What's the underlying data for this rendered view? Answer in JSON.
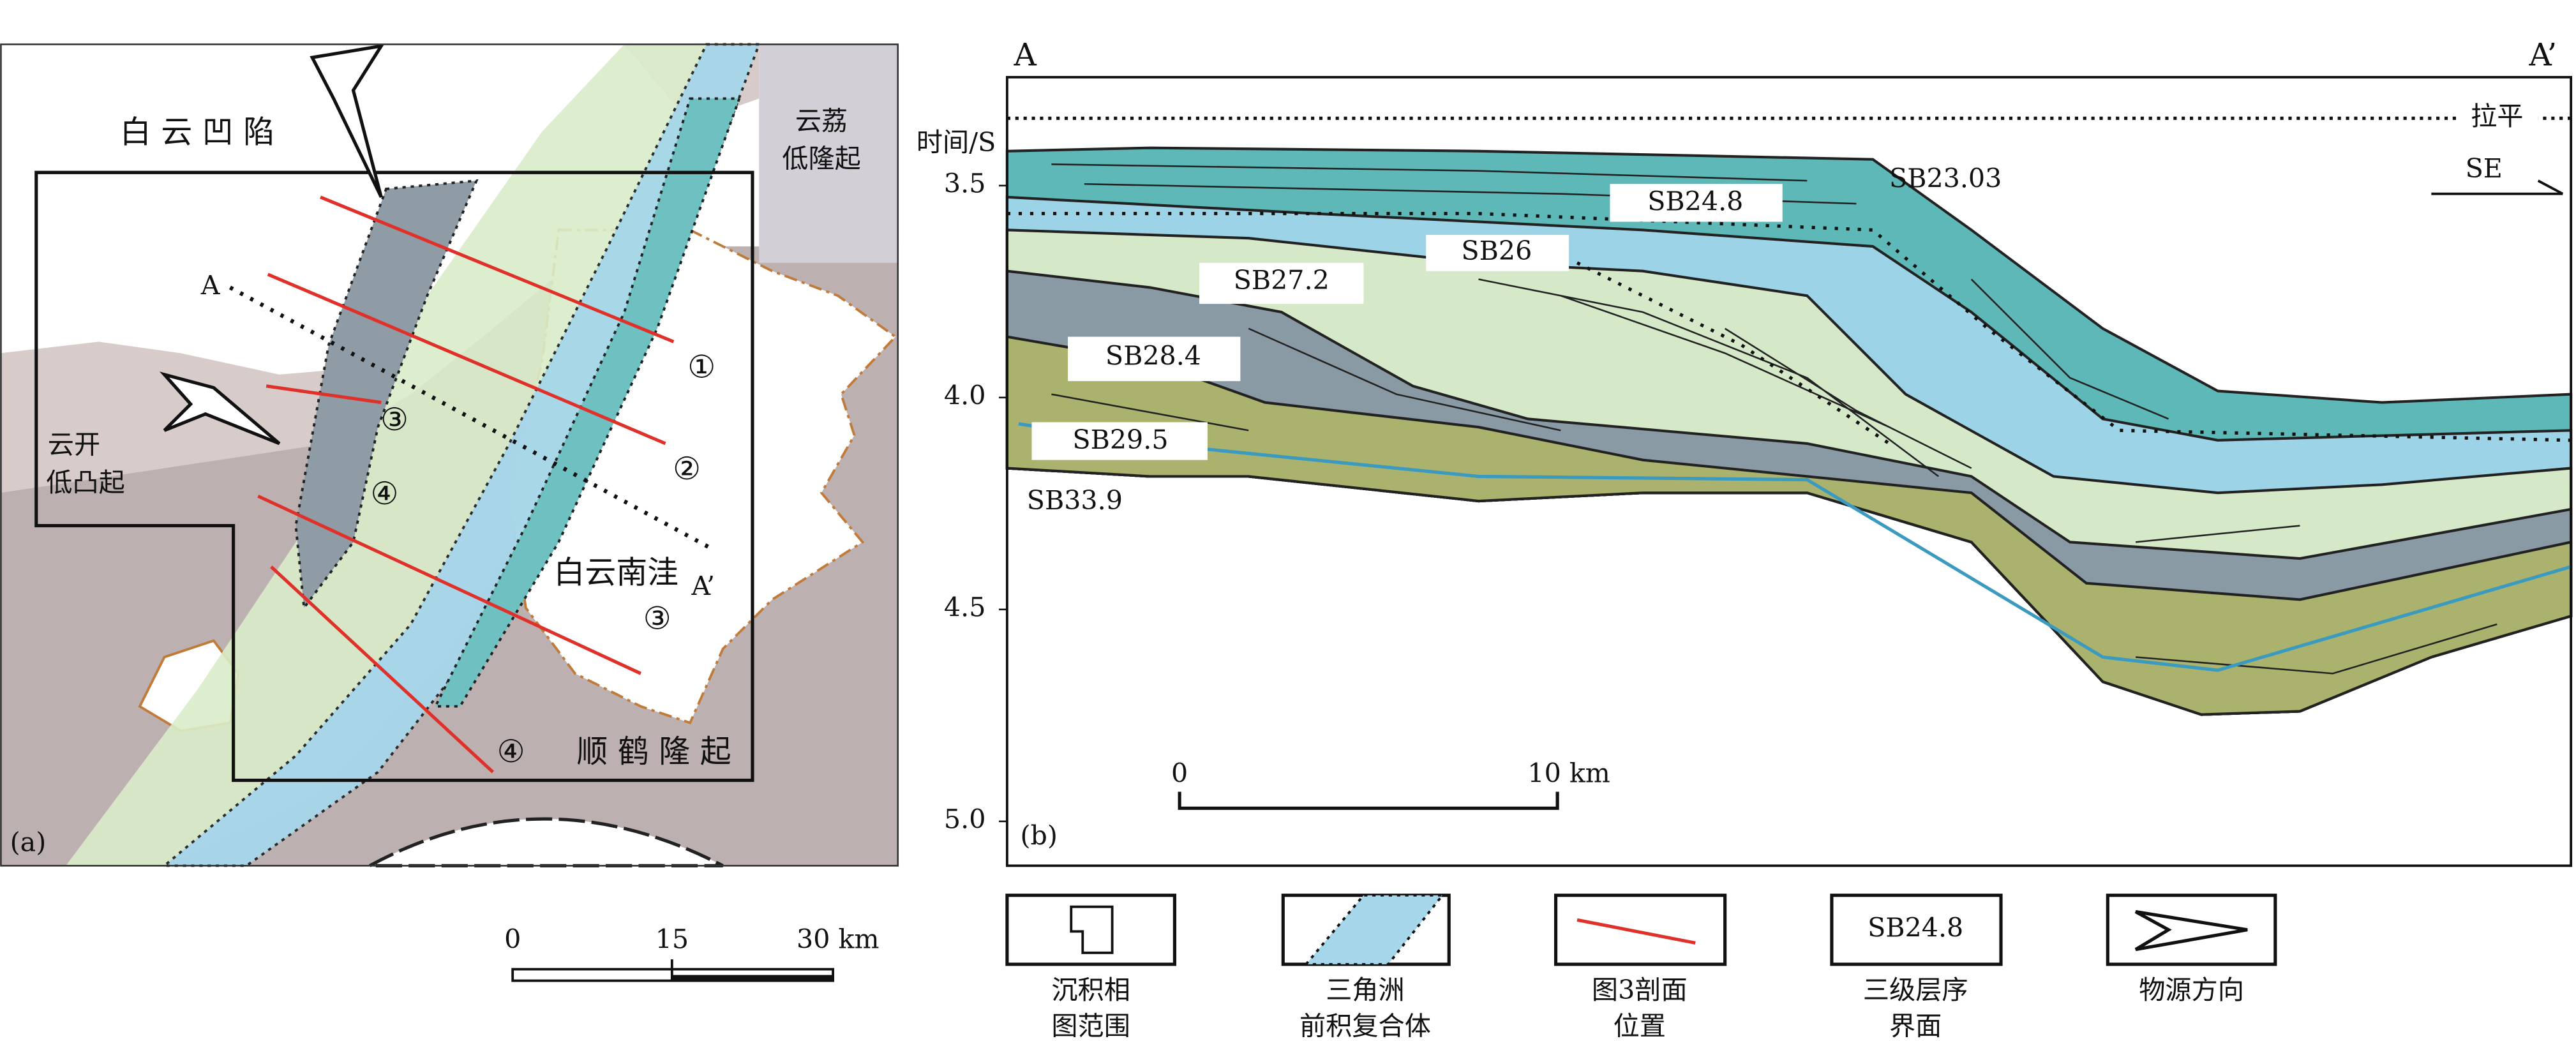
{
  "map": {
    "panel_label": "(a)",
    "labels": [
      "白 云 凹 陷",
      "云荔",
      "低隆起",
      "云开",
      "低凸起",
      "白云南洼",
      "顺 鹤 隆 起",
      "A",
      "A’"
    ],
    "profile_markers": [
      "①",
      "②",
      "③",
      "④",
      "③",
      "④"
    ],
    "scale_bar": [
      "0",
      "15",
      "30 km"
    ]
  },
  "section": {
    "panel_label": "(b)",
    "end_left": "A",
    "end_right": "A’",
    "axis_title": "时间/S",
    "ticks": [
      "3.5",
      "4.0",
      "4.5",
      "5.0"
    ],
    "datum": "拉平",
    "direction": "SE",
    "horizons": [
      "SB23.03",
      "SB24.8",
      "SB26",
      "SB27.2",
      "SB28.4",
      "SB29.5",
      "SB33.9"
    ],
    "scale_bar": [
      "0",
      "10 km"
    ]
  },
  "legend": [
    {
      "label": [
        "沉积相",
        "图范围"
      ]
    },
    {
      "label": [
        "三角洲",
        "前积复合体"
      ]
    },
    {
      "label": [
        "图3剖面",
        "位置"
      ]
    },
    {
      "icon_text": "SB24.8",
      "label": [
        "三级层序",
        "界面"
      ]
    },
    {
      "label": [
        "物源方向"
      ]
    }
  ]
}
